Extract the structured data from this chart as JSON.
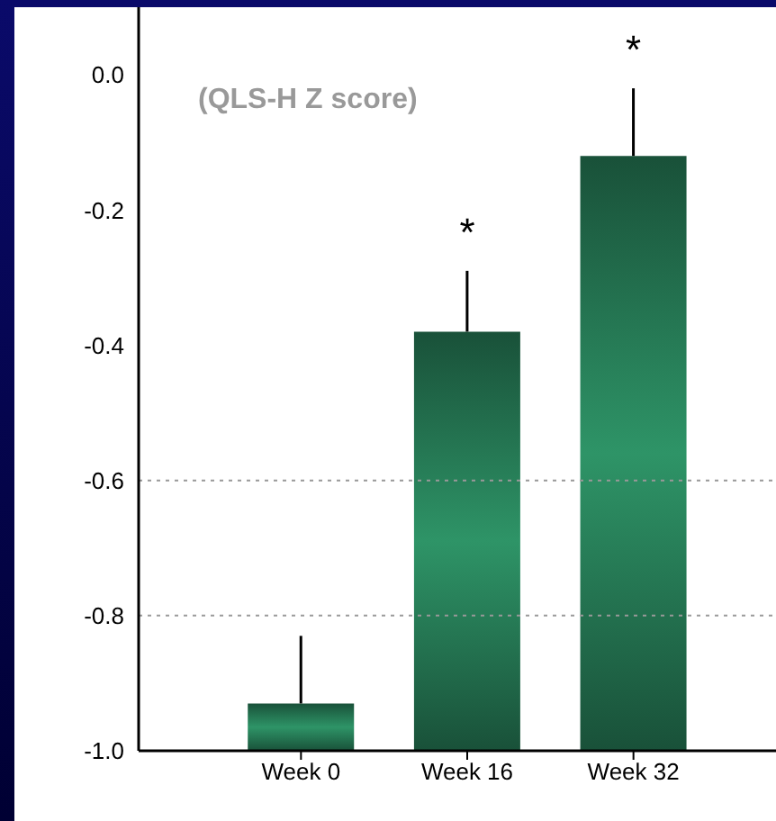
{
  "chart_data": {
    "type": "bar",
    "ylabel": "(QLS-H Z score)",
    "categories": [
      "Week 0",
      "Week 16",
      "Week 32"
    ],
    "base": [
      -1.0,
      -1.0,
      -1.0
    ],
    "values": [
      0.07,
      0.62,
      0.88
    ],
    "color": "#2e9467",
    "errors": [
      [
        -0.93,
        -0.83
      ],
      [
        -0.38,
        -0.29
      ],
      [
        -0.12,
        -0.02
      ]
    ],
    "ylim": [
      -1.0,
      0.1
    ],
    "yticks": [
      {
        "value": 0,
        "label": "0.0"
      },
      -0.2,
      -0.4,
      -0.6,
      -0.8,
      {
        "value": -1,
        "label": "-1.0"
      }
    ],
    "ref_lines": [
      {
        "axis": "y",
        "value": -0.6,
        "color": "#999999",
        "line_style": "dotted"
      },
      {
        "axis": "y",
        "value": -0.8,
        "color": "#999999",
        "line_style": "dotted"
      }
    ],
    "annotations": [
      {
        "text": "*",
        "x": "Week 16",
        "y": -0.38
      },
      {
        "text": "*",
        "x": "Week 32",
        "y": -0.12
      }
    ]
  }
}
